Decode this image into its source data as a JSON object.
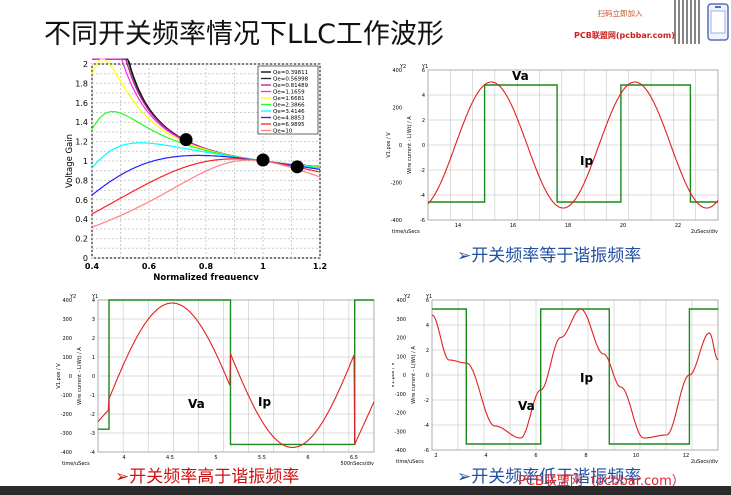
{
  "slide": {
    "title": "不同开关频率情况下LLC工作波形",
    "badge_line1": "扫码立即加入",
    "badge_site": "PCB联盟网(pcbbar.com)",
    "watermark": "PCB联盟网（pcbbar.com）"
  },
  "captions": {
    "top_right": "➢开关频率等于谐振频率",
    "bottom_left": "➢开关频率高于谐振频率",
    "bottom_right": "➢开关频率低于谐振频率"
  },
  "gain_chart": {
    "xlabel": "Normalized frequency",
    "ylabel": "Voltage Gain",
    "x_ticks": [
      "0.4",
      "0.6",
      "0.8",
      "1",
      "1.2"
    ],
    "y_ticks": [
      "0",
      "0.2",
      "0.4",
      "0.6",
      "0.8",
      "1",
      "1.2",
      "1.4",
      "1.6",
      "1.8",
      "2"
    ],
    "legend": [
      "Qe=0.39811",
      "Qe=0.56998",
      "Qe=0.81489",
      "Qe=1.1659",
      "Qe=1.6681",
      "Qe=2.3866",
      "Qe=3.4146",
      "Qe=4.8853",
      "Qe=6.9895",
      "Qe=10"
    ]
  },
  "wave_equal": {
    "va_label": "Va",
    "ip_label": "Ip",
    "left_axis_title": "Y2",
    "left_axis_sub": "V1.pos / V",
    "right_axis_title": "Y1",
    "right_axis_sub": "Wire current - L(Wt) / A",
    "y2_ticks": [
      "400",
      "200",
      "0",
      "-200",
      "-400"
    ],
    "y1_ticks": [
      "6",
      "4",
      "2",
      "0",
      "-2",
      "-4",
      "-6"
    ],
    "x_ticks": [
      "14",
      "16",
      "18",
      "20",
      "22"
    ],
    "x_left": "time/uSecs",
    "x_right": "2uSecs/div"
  },
  "wave_high": {
    "va_label": "Va",
    "ip_label": "Ip",
    "left_axis_title": "Y2",
    "left_axis_sub": "V1.pos / V",
    "right_axis_title": "Y1",
    "right_axis_sub": "Wire current - L(Wt) / A",
    "y2_ticks": [
      "400",
      "300",
      "200",
      "100",
      "0",
      "-100",
      "-200",
      "-300",
      "-400"
    ],
    "y1_ticks": [
      "4",
      "3",
      "2",
      "1",
      "0",
      "-1",
      "-2",
      "-3",
      "-4"
    ],
    "x_ticks": [
      "4",
      "4.5",
      "5",
      "5.5",
      "6",
      "6.5"
    ],
    "x_left": "time/uSecs",
    "x_right": "500nSecs/div"
  },
  "wave_low": {
    "va_label": "Va",
    "ip_label": "Ip",
    "left_axis_title": "Y2",
    "left_axis_sub": "V1.pos / V",
    "right_axis_title": "Y1",
    "right_axis_sub": "Wire current - L(Wt) / A",
    "y2_ticks": [
      "400",
      "300",
      "200",
      "100",
      "0",
      "-100",
      "-200",
      "-300",
      "-400"
    ],
    "y1_ticks": [
      "6",
      "4",
      "2",
      "0",
      "-2",
      "-4",
      "-6"
    ],
    "x_ticks": [
      "2",
      "4",
      "6",
      "8",
      "10",
      "12"
    ],
    "x_left": "time/uSecs",
    "x_right": "2uSecs/div"
  },
  "colors": {
    "square_wave": "#1a8a1a",
    "current_wave": "#e02020",
    "caption_blue": "#2050a0",
    "caption_red": "#d01010",
    "gain_curves": [
      "#000000",
      "#222222",
      "#b02080",
      "#ff20ff",
      "#ffff00",
      "#20ff20",
      "#00ffff",
      "#2020ff",
      "#ff2020",
      "#ff8080"
    ]
  }
}
